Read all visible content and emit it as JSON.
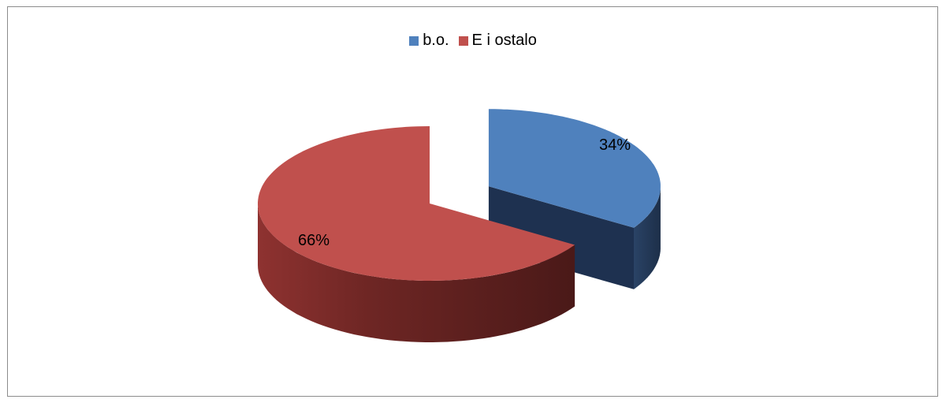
{
  "chart_data": {
    "type": "pie",
    "series": [
      {
        "name": "b.o.",
        "value": 34,
        "label": "34%",
        "color": "#4f81bd"
      },
      {
        "name": "E i ostalo",
        "value": 66,
        "label": "66%",
        "color": "#c0504d"
      }
    ],
    "legend_position": "top",
    "style": "3d-exploded"
  }
}
